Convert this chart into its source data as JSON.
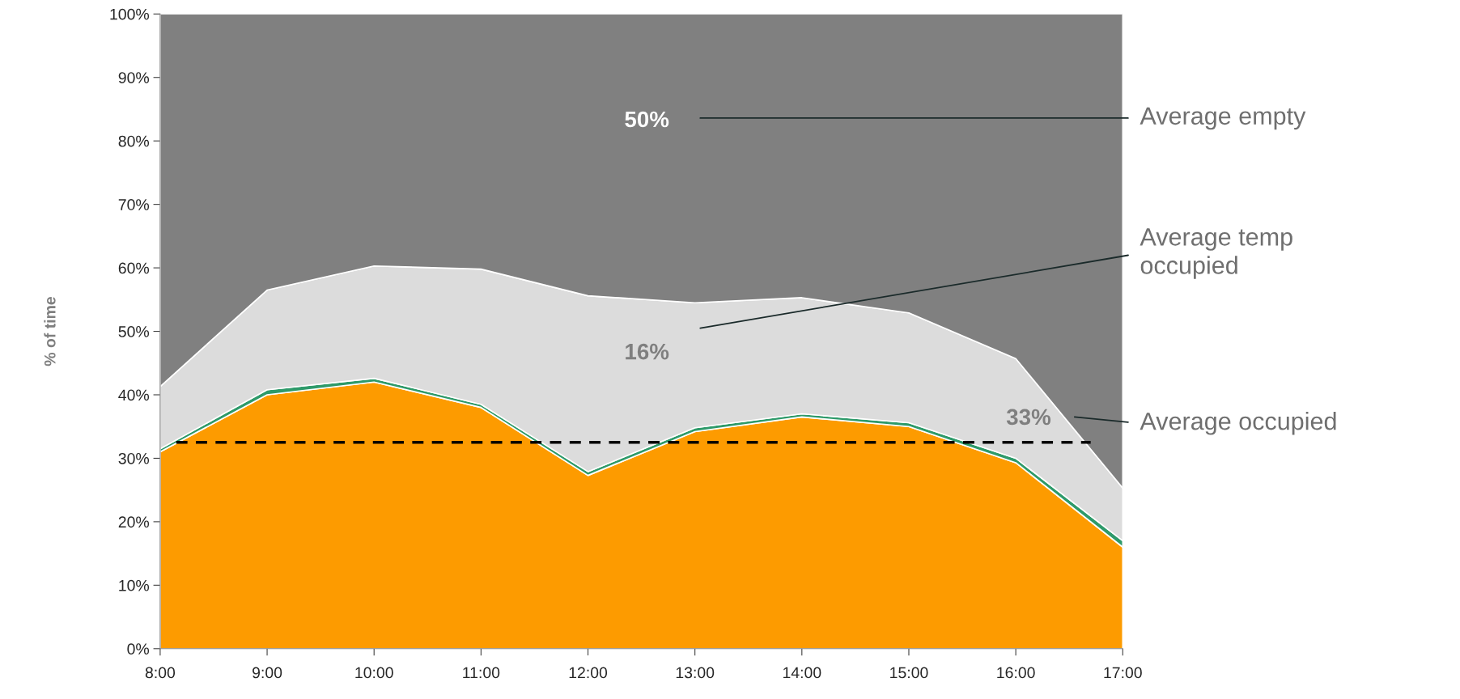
{
  "chart_data": {
    "type": "area",
    "stacked": true,
    "ylabel": "% of time",
    "x": [
      8,
      9,
      10,
      11,
      12,
      13,
      14,
      15,
      16,
      17
    ],
    "xlim": [
      8,
      17
    ],
    "xticks": [
      {
        "value": 8,
        "label": "8:00"
      },
      {
        "value": 9,
        "label": "9:00"
      },
      {
        "value": 10,
        "label": "10:00"
      },
      {
        "value": 11,
        "label": "11:00"
      },
      {
        "value": 12,
        "label": "12:00"
      },
      {
        "value": 13,
        "label": "13:00"
      },
      {
        "value": 14,
        "label": "14:00"
      },
      {
        "value": 15,
        "label": "15:00"
      },
      {
        "value": 16,
        "label": "16:00"
      },
      {
        "value": 17,
        "label": "17:00"
      }
    ],
    "ylim": [
      0,
      100
    ],
    "yticks": [
      {
        "value": 0,
        "label": "0%"
      },
      {
        "value": 10,
        "label": "10%"
      },
      {
        "value": 20,
        "label": "20%"
      },
      {
        "value": 30,
        "label": "30%"
      },
      {
        "value": 40,
        "label": "40%"
      },
      {
        "value": 50,
        "label": "50%"
      },
      {
        "value": 60,
        "label": "60%"
      },
      {
        "value": 70,
        "label": "70%"
      },
      {
        "value": 80,
        "label": "80%"
      },
      {
        "value": 90,
        "label": "90%"
      },
      {
        "value": 100,
        "label": "100%"
      }
    ],
    "series": [
      {
        "color": "#fd9b00",
        "values": [
          31,
          40,
          42,
          38,
          27.3,
          34.2,
          36.5,
          35,
          29.3,
          16
        ]
      },
      {
        "color": "#2e9a6a",
        "values": [
          0.5,
          0.8,
          0.6,
          0.5,
          0.6,
          0.6,
          0.5,
          0.6,
          0.7,
          1
        ]
      },
      {
        "color": "#dcdcdc",
        "values": [
          9.8,
          15.7,
          17.7,
          21.3,
          27.7,
          19.7,
          18.3,
          17.3,
          15.7,
          8.3
        ]
      },
      {
        "color": "#808080",
        "values": [
          58.7,
          43.5,
          39.7,
          40.2,
          44.4,
          45.5,
          44.7,
          47.1,
          54.3,
          74.7
        ]
      }
    ],
    "ref_lines": [
      {
        "axis": "y",
        "value": 32.5,
        "color": "#000000",
        "line_style": "dashed"
      }
    ],
    "annotations": [
      "50%",
      "16%",
      "33%",
      "Average empty",
      "Average temp\noccupied",
      "Average occupied"
    ],
    "grid": false,
    "legend": false
  }
}
